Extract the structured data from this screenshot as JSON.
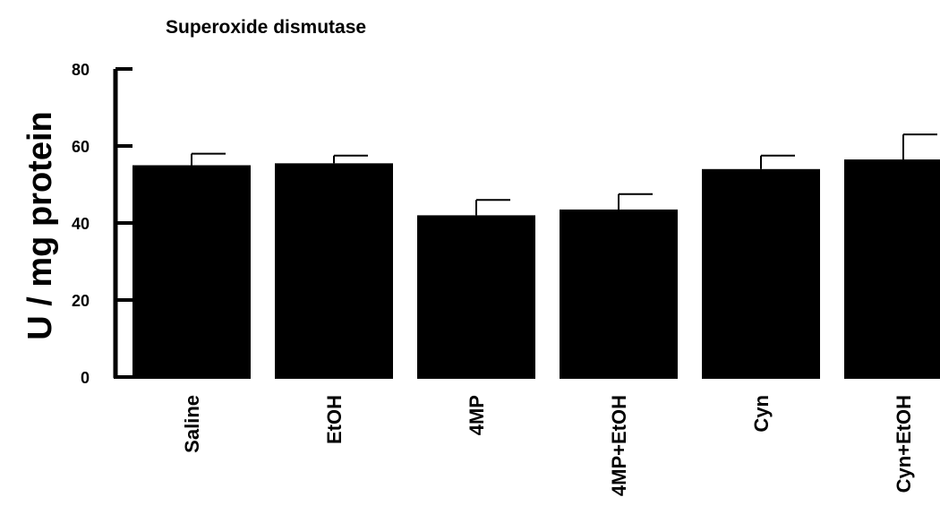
{
  "chart_data": {
    "type": "bar",
    "title": "Superoxide dismutase",
    "xlabel": "",
    "ylabel": "U / mg protein",
    "ylim": [
      0,
      80
    ],
    "yticks": [
      "0",
      "20",
      "40",
      "60",
      "80"
    ],
    "categories": [
      "Saline",
      "EtOH",
      "4MP",
      "4MP+EtOH",
      "Cyn",
      "Cyn+EtOH"
    ],
    "values": [
      55,
      55.5,
      42,
      43.5,
      54,
      56.5
    ],
    "errors": [
      3,
      2,
      4,
      4,
      3.5,
      6.5
    ],
    "bar_color": "#000000",
    "grid": false,
    "legend": "none"
  }
}
